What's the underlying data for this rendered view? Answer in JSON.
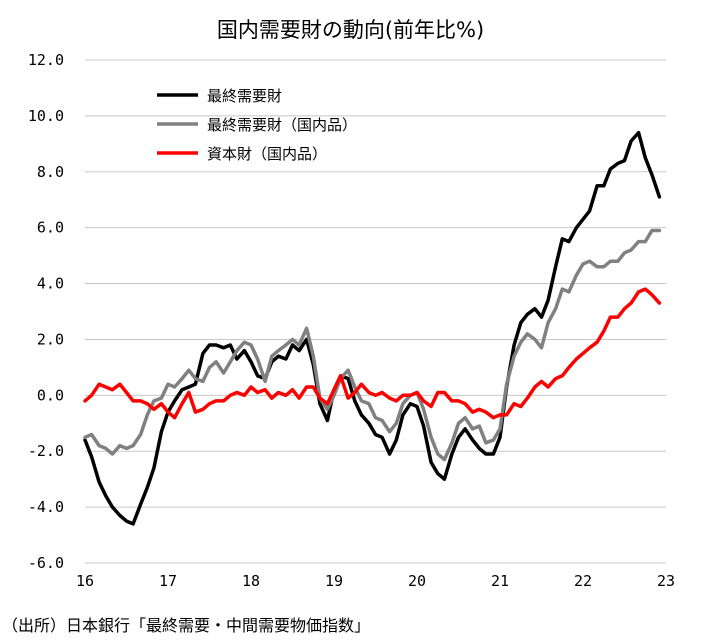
{
  "chart_data": {
    "type": "line",
    "title": "国内需要財の動向(前年比%)",
    "ylim": [
      -6,
      12
    ],
    "yticks": [
      "12.0",
      "10.0",
      "8.0",
      "6.0",
      "4.0",
      "2.0",
      "0.0",
      "-2.0",
      "-4.0",
      "-6.0"
    ],
    "xlim": [
      2016,
      2023
    ],
    "xticks": [
      "16",
      "17",
      "18",
      "19",
      "20",
      "21",
      "22",
      "23"
    ],
    "grid": true,
    "legend_position": "top-left",
    "series": [
      {
        "name": "最終需要財",
        "color": "#000000",
        "points": [
          [
            2016.0,
            -1.6
          ],
          [
            2016.08,
            -2.2
          ],
          [
            2016.17,
            -3.1
          ],
          [
            2016.25,
            -3.6
          ],
          [
            2016.33,
            -4.0
          ],
          [
            2016.42,
            -4.3
          ],
          [
            2016.5,
            -4.5
          ],
          [
            2016.58,
            -4.6
          ],
          [
            2016.67,
            -3.9
          ],
          [
            2016.75,
            -3.3
          ],
          [
            2016.83,
            -2.6
          ],
          [
            2016.92,
            -1.3
          ],
          [
            2017.0,
            -0.6
          ],
          [
            2017.08,
            -0.2
          ],
          [
            2017.17,
            0.2
          ],
          [
            2017.25,
            0.3
          ],
          [
            2017.33,
            0.4
          ],
          [
            2017.42,
            1.5
          ],
          [
            2017.5,
            1.8
          ],
          [
            2017.58,
            1.8
          ],
          [
            2017.67,
            1.7
          ],
          [
            2017.75,
            1.8
          ],
          [
            2017.83,
            1.3
          ],
          [
            2017.92,
            1.6
          ],
          [
            2018.0,
            1.2
          ],
          [
            2018.08,
            0.7
          ],
          [
            2018.17,
            0.6
          ],
          [
            2018.25,
            1.2
          ],
          [
            2018.33,
            1.4
          ],
          [
            2018.42,
            1.3
          ],
          [
            2018.5,
            1.8
          ],
          [
            2018.58,
            1.6
          ],
          [
            2018.67,
            2.0
          ],
          [
            2018.75,
            1.1
          ],
          [
            2018.83,
            -0.3
          ],
          [
            2018.92,
            -0.9
          ],
          [
            2019.0,
            0.2
          ],
          [
            2019.08,
            0.7
          ],
          [
            2019.17,
            0.6
          ],
          [
            2019.25,
            -0.2
          ],
          [
            2019.33,
            -0.7
          ],
          [
            2019.42,
            -1.0
          ],
          [
            2019.5,
            -1.4
          ],
          [
            2019.58,
            -1.5
          ],
          [
            2019.67,
            -2.1
          ],
          [
            2019.75,
            -1.6
          ],
          [
            2019.83,
            -0.7
          ],
          [
            2019.92,
            -0.3
          ],
          [
            2020.0,
            -0.4
          ],
          [
            2020.08,
            -1.1
          ],
          [
            2020.17,
            -2.4
          ],
          [
            2020.25,
            -2.8
          ],
          [
            2020.33,
            -3.0
          ],
          [
            2020.42,
            -2.1
          ],
          [
            2020.5,
            -1.5
          ],
          [
            2020.58,
            -1.2
          ],
          [
            2020.67,
            -1.6
          ],
          [
            2020.75,
            -1.9
          ],
          [
            2020.83,
            -2.1
          ],
          [
            2020.92,
            -2.1
          ],
          [
            2021.0,
            -1.5
          ],
          [
            2021.08,
            0.3
          ],
          [
            2021.17,
            1.8
          ],
          [
            2021.25,
            2.6
          ],
          [
            2021.33,
            2.9
          ],
          [
            2021.42,
            3.1
          ],
          [
            2021.5,
            2.8
          ],
          [
            2021.58,
            3.4
          ],
          [
            2021.67,
            4.6
          ],
          [
            2021.75,
            5.6
          ],
          [
            2021.83,
            5.5
          ],
          [
            2021.92,
            6.0
          ],
          [
            2022.0,
            6.3
          ],
          [
            2022.08,
            6.6
          ],
          [
            2022.17,
            7.5
          ],
          [
            2022.25,
            7.5
          ],
          [
            2022.33,
            8.1
          ],
          [
            2022.42,
            8.3
          ],
          [
            2022.5,
            8.4
          ],
          [
            2022.58,
            9.1
          ],
          [
            2022.67,
            9.4
          ],
          [
            2022.75,
            8.5
          ],
          [
            2022.83,
            7.9
          ],
          [
            2022.92,
            7.1
          ]
        ]
      },
      {
        "name": "最終需要財（国内品）",
        "color": "#808080",
        "points": [
          [
            2016.0,
            -1.5
          ],
          [
            2016.08,
            -1.4
          ],
          [
            2016.17,
            -1.8
          ],
          [
            2016.25,
            -1.9
          ],
          [
            2016.33,
            -2.1
          ],
          [
            2016.42,
            -1.8
          ],
          [
            2016.5,
            -1.9
          ],
          [
            2016.58,
            -1.8
          ],
          [
            2016.67,
            -1.4
          ],
          [
            2016.75,
            -0.7
          ],
          [
            2016.83,
            -0.2
          ],
          [
            2016.92,
            -0.1
          ],
          [
            2017.0,
            0.4
          ],
          [
            2017.08,
            0.3
          ],
          [
            2017.17,
            0.6
          ],
          [
            2017.25,
            0.9
          ],
          [
            2017.33,
            0.6
          ],
          [
            2017.42,
            0.5
          ],
          [
            2017.5,
            1.0
          ],
          [
            2017.58,
            1.2
          ],
          [
            2017.67,
            0.8
          ],
          [
            2017.75,
            1.2
          ],
          [
            2017.83,
            1.6
          ],
          [
            2017.92,
            1.9
          ],
          [
            2018.0,
            1.8
          ],
          [
            2018.08,
            1.3
          ],
          [
            2018.17,
            0.5
          ],
          [
            2018.25,
            1.4
          ],
          [
            2018.33,
            1.6
          ],
          [
            2018.42,
            1.8
          ],
          [
            2018.5,
            2.0
          ],
          [
            2018.58,
            1.8
          ],
          [
            2018.67,
            2.4
          ],
          [
            2018.75,
            1.4
          ],
          [
            2018.83,
            -0.1
          ],
          [
            2018.92,
            -0.5
          ],
          [
            2019.0,
            0.0
          ],
          [
            2019.08,
            0.6
          ],
          [
            2019.17,
            0.9
          ],
          [
            2019.25,
            0.3
          ],
          [
            2019.33,
            -0.2
          ],
          [
            2019.42,
            -0.3
          ],
          [
            2019.5,
            -0.8
          ],
          [
            2019.58,
            -0.9
          ],
          [
            2019.67,
            -1.3
          ],
          [
            2019.75,
            -1.0
          ],
          [
            2019.83,
            -0.3
          ],
          [
            2019.92,
            0.0
          ],
          [
            2020.0,
            0.1
          ],
          [
            2020.08,
            -0.5
          ],
          [
            2020.17,
            -1.5
          ],
          [
            2020.25,
            -2.1
          ],
          [
            2020.33,
            -2.3
          ],
          [
            2020.42,
            -1.7
          ],
          [
            2020.5,
            -1.0
          ],
          [
            2020.58,
            -0.8
          ],
          [
            2020.67,
            -1.2
          ],
          [
            2020.75,
            -1.1
          ],
          [
            2020.83,
            -1.7
          ],
          [
            2020.92,
            -1.6
          ],
          [
            2021.0,
            -1.2
          ],
          [
            2021.08,
            0.4
          ],
          [
            2021.17,
            1.4
          ],
          [
            2021.25,
            1.9
          ],
          [
            2021.33,
            2.2
          ],
          [
            2021.42,
            2.0
          ],
          [
            2021.5,
            1.7
          ],
          [
            2021.58,
            2.6
          ],
          [
            2021.67,
            3.1
          ],
          [
            2021.75,
            3.8
          ],
          [
            2021.83,
            3.7
          ],
          [
            2021.92,
            4.3
          ],
          [
            2022.0,
            4.7
          ],
          [
            2022.08,
            4.8
          ],
          [
            2022.17,
            4.6
          ],
          [
            2022.25,
            4.6
          ],
          [
            2022.33,
            4.8
          ],
          [
            2022.42,
            4.8
          ],
          [
            2022.5,
            5.1
          ],
          [
            2022.58,
            5.2
          ],
          [
            2022.67,
            5.5
          ],
          [
            2022.75,
            5.5
          ],
          [
            2022.83,
            5.9
          ],
          [
            2022.92,
            5.9
          ]
        ]
      },
      {
        "name": "資本財（国内品）",
        "color": "#ff0000",
        "points": [
          [
            2016.0,
            -0.2
          ],
          [
            2016.08,
            0.0
          ],
          [
            2016.17,
            0.4
          ],
          [
            2016.25,
            0.3
          ],
          [
            2016.33,
            0.2
          ],
          [
            2016.42,
            0.4
          ],
          [
            2016.5,
            0.1
          ],
          [
            2016.58,
            -0.2
          ],
          [
            2016.67,
            -0.2
          ],
          [
            2016.75,
            -0.3
          ],
          [
            2016.83,
            -0.5
          ],
          [
            2016.92,
            -0.3
          ],
          [
            2017.0,
            -0.6
          ],
          [
            2017.08,
            -0.8
          ],
          [
            2017.17,
            -0.3
          ],
          [
            2017.25,
            0.1
          ],
          [
            2017.33,
            -0.6
          ],
          [
            2017.42,
            -0.5
          ],
          [
            2017.5,
            -0.3
          ],
          [
            2017.58,
            -0.2
          ],
          [
            2017.67,
            -0.2
          ],
          [
            2017.75,
            0.0
          ],
          [
            2017.83,
            0.1
          ],
          [
            2017.92,
            0.0
          ],
          [
            2018.0,
            0.3
          ],
          [
            2018.08,
            0.1
          ],
          [
            2018.17,
            0.2
          ],
          [
            2018.25,
            -0.1
          ],
          [
            2018.33,
            0.1
          ],
          [
            2018.42,
            0.0
          ],
          [
            2018.5,
            0.2
          ],
          [
            2018.58,
            -0.1
          ],
          [
            2018.67,
            0.3
          ],
          [
            2018.75,
            0.3
          ],
          [
            2018.83,
            -0.1
          ],
          [
            2018.92,
            -0.3
          ],
          [
            2019.0,
            0.2
          ],
          [
            2019.08,
            0.7
          ],
          [
            2019.17,
            -0.1
          ],
          [
            2019.25,
            0.1
          ],
          [
            2019.33,
            0.4
          ],
          [
            2019.42,
            0.1
          ],
          [
            2019.5,
            0.0
          ],
          [
            2019.58,
            0.1
          ],
          [
            2019.67,
            -0.1
          ],
          [
            2019.75,
            -0.2
          ],
          [
            2019.83,
            0.0
          ],
          [
            2019.92,
            0.0
          ],
          [
            2020.0,
            0.1
          ],
          [
            2020.08,
            -0.2
          ],
          [
            2020.17,
            -0.4
          ],
          [
            2020.25,
            0.1
          ],
          [
            2020.33,
            0.1
          ],
          [
            2020.42,
            -0.2
          ],
          [
            2020.5,
            -0.2
          ],
          [
            2020.58,
            -0.3
          ],
          [
            2020.67,
            -0.6
          ],
          [
            2020.75,
            -0.5
          ],
          [
            2020.83,
            -0.6
          ],
          [
            2020.92,
            -0.8
          ],
          [
            2021.0,
            -0.7
          ],
          [
            2021.08,
            -0.7
          ],
          [
            2021.17,
            -0.3
          ],
          [
            2021.25,
            -0.4
          ],
          [
            2021.33,
            -0.1
          ],
          [
            2021.42,
            0.3
          ],
          [
            2021.5,
            0.5
          ],
          [
            2021.58,
            0.3
          ],
          [
            2021.67,
            0.6
          ],
          [
            2021.75,
            0.7
          ],
          [
            2021.83,
            1.0
          ],
          [
            2021.92,
            1.3
          ],
          [
            2022.0,
            1.5
          ],
          [
            2022.08,
            1.7
          ],
          [
            2022.17,
            1.9
          ],
          [
            2022.25,
            2.3
          ],
          [
            2022.33,
            2.8
          ],
          [
            2022.42,
            2.8
          ],
          [
            2022.5,
            3.1
          ],
          [
            2022.58,
            3.3
          ],
          [
            2022.67,
            3.7
          ],
          [
            2022.75,
            3.8
          ],
          [
            2022.83,
            3.6
          ],
          [
            2022.92,
            3.3
          ]
        ]
      }
    ]
  },
  "source_note": "（出所）日本銀行「最終需要・中間需要物価指数」"
}
